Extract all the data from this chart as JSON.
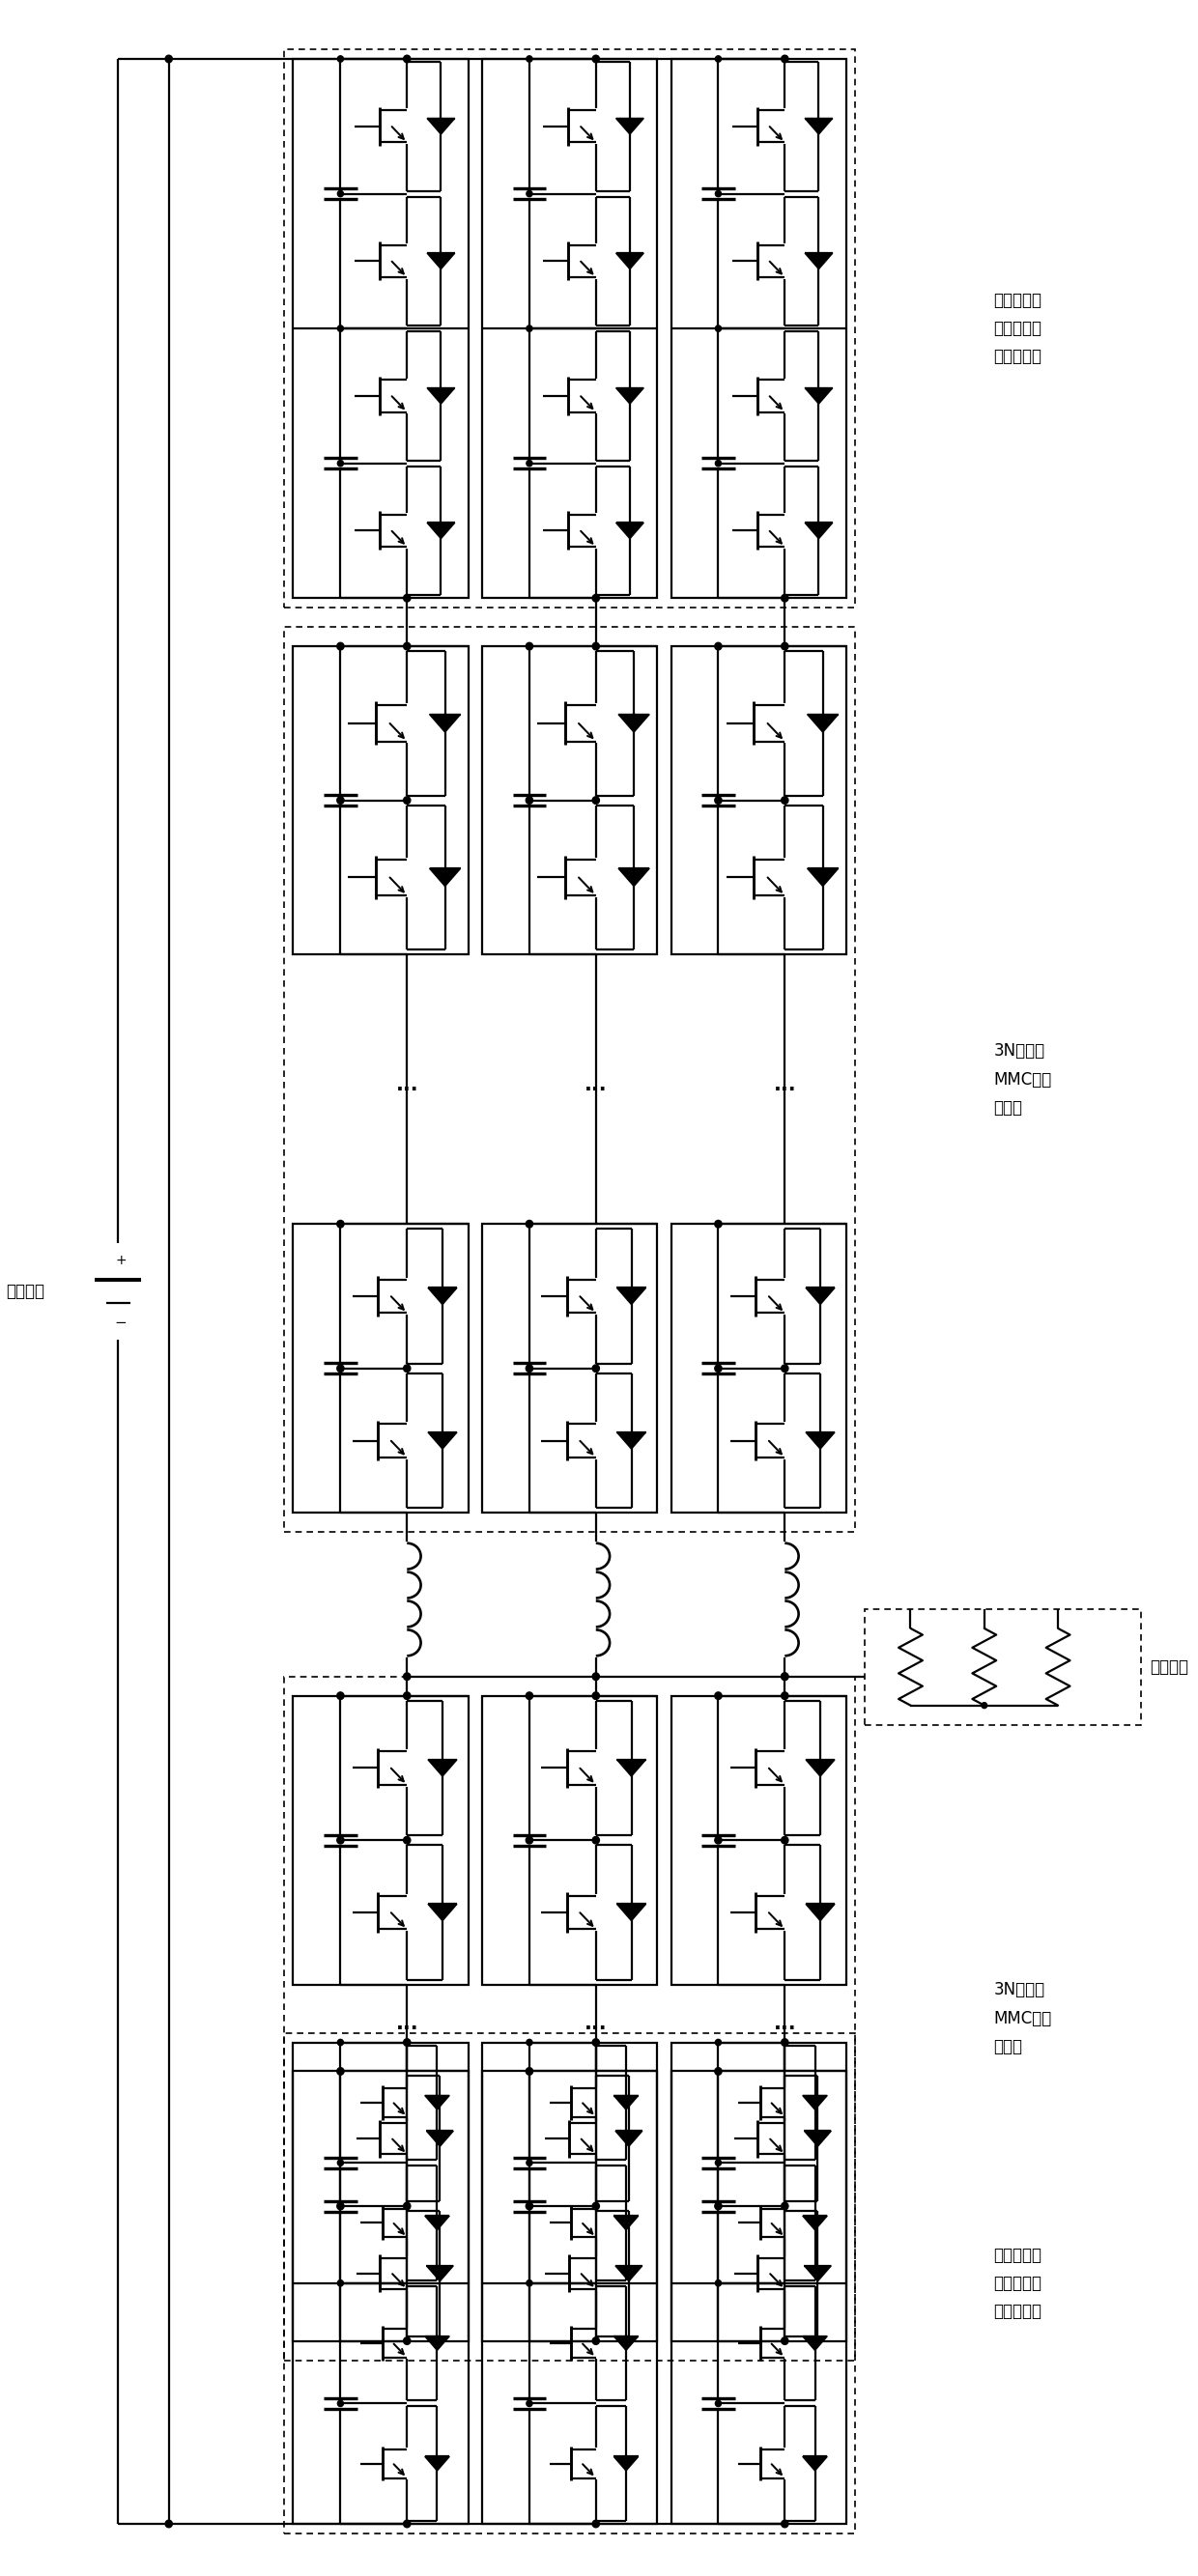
{
  "labels": {
    "top_label": "本发明子模\n块电路用于\n直流测正极",
    "upper_mid_label": "3N个普通\nMMC半桥\n子模块",
    "load_label": "三相负载",
    "lower_mid_label": "3N个普通\nMMC半桥\n子模块",
    "bottom_label": "本发明子模\n块电路用于\n直流测负极",
    "dc_source_label": "直流电源"
  },
  "bg_color": "#ffffff",
  "line_color": "#000000",
  "lw": 1.6,
  "fig_width": 12.4,
  "fig_height": 26.67
}
